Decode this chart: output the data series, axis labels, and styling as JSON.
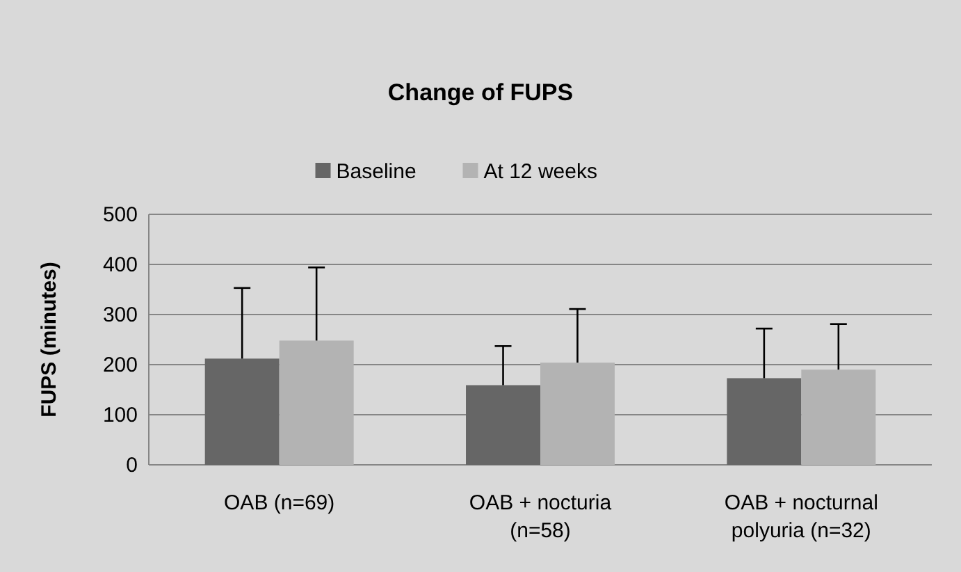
{
  "chart_data": {
    "type": "bar",
    "title": "Change of FUPS",
    "ylabel": "FUPS (minutes)",
    "categories": [
      "OAB (n=69)",
      "OAB + nocturia (n=58)",
      "OAB + nocturnal polyuria (n=32)"
    ],
    "series": [
      {
        "name": "Baseline",
        "color": "#666666",
        "values": [
          212,
          159,
          173
        ],
        "errors": [
          [
            212,
            353
          ],
          [
            159,
            237
          ],
          [
            173,
            272
          ]
        ]
      },
      {
        "name": "At 12 weeks",
        "color": "#b3b3b3",
        "values": [
          248,
          204,
          190
        ],
        "errors": [
          [
            248,
            394
          ],
          [
            204,
            311
          ],
          [
            190,
            281
          ]
        ]
      }
    ],
    "ylim": [
      0,
      500
    ],
    "yticks": [
      0,
      100,
      200,
      300,
      400,
      500
    ],
    "grid": "y",
    "legend": "top"
  }
}
